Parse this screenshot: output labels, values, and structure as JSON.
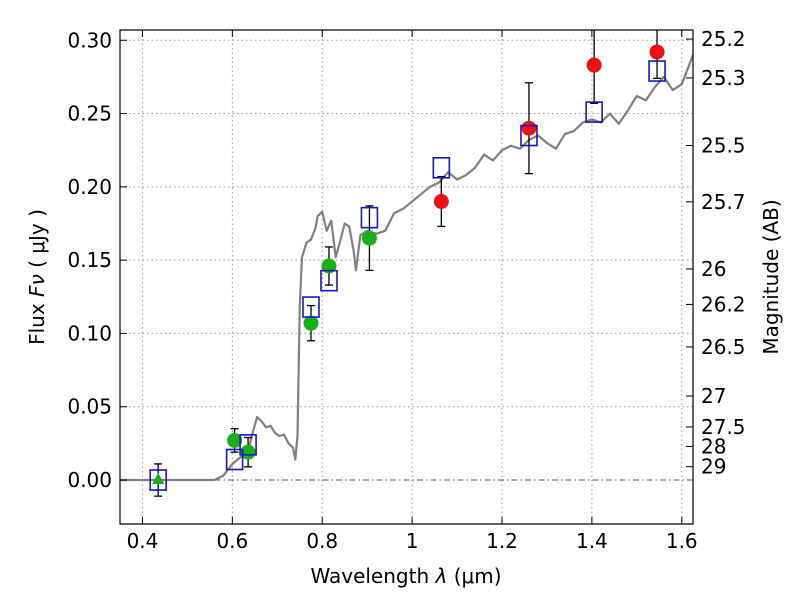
{
  "chart_data": {
    "type": "scatter",
    "xlabel_text": "Wavelength",
    "xlabel_symbol": "λ",
    "xlabel_unit": "(μm)",
    "ylabel_text": "Flux",
    "ylabel_symbol": "Fν",
    "ylabel_unit": "( μJy )",
    "y2label": "Magnitude (AB)",
    "xlim": [
      0.35,
      1.625
    ],
    "ylim": [
      -0.03,
      0.307
    ],
    "grid": true,
    "x_ticks": [
      0.4,
      0.6,
      0.8,
      1.0,
      1.2,
      1.4,
      1.6
    ],
    "x_tick_labels": [
      "0.4",
      "0.6",
      "0.8",
      "1",
      "1.2",
      "1.4",
      "1.6"
    ],
    "y_ticks": [
      0.0,
      0.05,
      0.1,
      0.15,
      0.2,
      0.25,
      0.3
    ],
    "y_tick_labels": [
      "0.00",
      "0.05",
      "0.10",
      "0.15",
      "0.20",
      "0.25",
      "0.30"
    ],
    "magnitude_ticks": [
      {
        "label": "25.2",
        "flux": 0.3008
      },
      {
        "label": "25.3",
        "flux": 0.2743
      },
      {
        "label": "25.5",
        "flux": 0.2282
      },
      {
        "label": "25.7",
        "flux": 0.1898
      },
      {
        "label": "26",
        "flux": 0.144
      },
      {
        "label": "26.2",
        "flux": 0.1198
      },
      {
        "label": "26.5",
        "flux": 0.0908
      },
      {
        "label": "27",
        "flux": 0.0573
      },
      {
        "label": "27.5",
        "flux": 0.0362
      },
      {
        "label": "28",
        "flux": 0.0229
      },
      {
        "label": "29",
        "flux": 0.0091
      }
    ],
    "colors": {
      "model": "#808080",
      "template": "#1515c8",
      "green": "#17b017",
      "red": "#ee1111",
      "errorbar": "#000000",
      "grid": "#999999"
    },
    "model_sed": [
      [
        0.35,
        0.0
      ],
      [
        0.56,
        0.0
      ],
      [
        0.58,
        0.003
      ],
      [
        0.6,
        0.011
      ],
      [
        0.62,
        0.016
      ],
      [
        0.635,
        0.02
      ],
      [
        0.645,
        0.032
      ],
      [
        0.655,
        0.043
      ],
      [
        0.665,
        0.04
      ],
      [
        0.675,
        0.036
      ],
      [
        0.685,
        0.037
      ],
      [
        0.695,
        0.032
      ],
      [
        0.705,
        0.03
      ],
      [
        0.715,
        0.031
      ],
      [
        0.725,
        0.025
      ],
      [
        0.735,
        0.022
      ],
      [
        0.74,
        0.014
      ],
      [
        0.745,
        0.03
      ],
      [
        0.75,
        0.12
      ],
      [
        0.755,
        0.152
      ],
      [
        0.765,
        0.162
      ],
      [
        0.775,
        0.164
      ],
      [
        0.785,
        0.172
      ],
      [
        0.79,
        0.18
      ],
      [
        0.8,
        0.183
      ],
      [
        0.81,
        0.17
      ],
      [
        0.82,
        0.177
      ],
      [
        0.83,
        0.152
      ],
      [
        0.84,
        0.163
      ],
      [
        0.85,
        0.175
      ],
      [
        0.86,
        0.173
      ],
      [
        0.87,
        0.156
      ],
      [
        0.875,
        0.143
      ],
      [
        0.885,
        0.167
      ],
      [
        0.9,
        0.17
      ],
      [
        0.92,
        0.168
      ],
      [
        0.94,
        0.17
      ],
      [
        0.96,
        0.182
      ],
      [
        0.98,
        0.185
      ],
      [
        1.0,
        0.19
      ],
      [
        1.02,
        0.195
      ],
      [
        1.04,
        0.2
      ],
      [
        1.06,
        0.203
      ],
      [
        1.08,
        0.21
      ],
      [
        1.1,
        0.205
      ],
      [
        1.12,
        0.208
      ],
      [
        1.14,
        0.213
      ],
      [
        1.16,
        0.222
      ],
      [
        1.18,
        0.218
      ],
      [
        1.2,
        0.225
      ],
      [
        1.22,
        0.228
      ],
      [
        1.24,
        0.226
      ],
      [
        1.26,
        0.232
      ],
      [
        1.28,
        0.235
      ],
      [
        1.3,
        0.23
      ],
      [
        1.32,
        0.226
      ],
      [
        1.34,
        0.236
      ],
      [
        1.36,
        0.238
      ],
      [
        1.38,
        0.244
      ],
      [
        1.4,
        0.246
      ],
      [
        1.42,
        0.244
      ],
      [
        1.44,
        0.25
      ],
      [
        1.46,
        0.243
      ],
      [
        1.48,
        0.252
      ],
      [
        1.5,
        0.262
      ],
      [
        1.52,
        0.259
      ],
      [
        1.54,
        0.268
      ],
      [
        1.56,
        0.275
      ],
      [
        1.58,
        0.266
      ],
      [
        1.6,
        0.27
      ],
      [
        1.625,
        0.29
      ]
    ],
    "template_points": [
      {
        "x": 0.435,
        "y": 0.0
      },
      {
        "x": 0.605,
        "y": 0.014
      },
      {
        "x": 0.635,
        "y": 0.024
      },
      {
        "x": 0.775,
        "y": 0.118
      },
      {
        "x": 0.815,
        "y": 0.136
      },
      {
        "x": 0.905,
        "y": 0.179
      },
      {
        "x": 1.065,
        "y": 0.213
      },
      {
        "x": 1.26,
        "y": 0.235
      },
      {
        "x": 1.405,
        "y": 0.251
      },
      {
        "x": 1.545,
        "y": 0.279
      }
    ],
    "observed_points": [
      {
        "x": 0.435,
        "y": 0.0,
        "err": 0.011,
        "marker": "triangle",
        "color": "green"
      },
      {
        "x": 0.605,
        "y": 0.027,
        "err": 0.008,
        "marker": "circle",
        "color": "green"
      },
      {
        "x": 0.635,
        "y": 0.019,
        "err": 0.01,
        "marker": "circle",
        "color": "green"
      },
      {
        "x": 0.775,
        "y": 0.107,
        "err": 0.012,
        "marker": "circle",
        "color": "green"
      },
      {
        "x": 0.815,
        "y": 0.146,
        "err": 0.013,
        "marker": "circle",
        "color": "green"
      },
      {
        "x": 0.905,
        "y": 0.165,
        "err": 0.022,
        "marker": "circle",
        "color": "green"
      },
      {
        "x": 1.065,
        "y": 0.19,
        "err": 0.017,
        "marker": "circle",
        "color": "red"
      },
      {
        "x": 1.26,
        "y": 0.24,
        "err": 0.031,
        "marker": "circle",
        "color": "red"
      },
      {
        "x": 1.405,
        "y": 0.283,
        "err": 0.026,
        "marker": "circle",
        "color": "red"
      },
      {
        "x": 1.545,
        "y": 0.292,
        "err": 0.018,
        "marker": "circle",
        "color": "red"
      }
    ]
  }
}
